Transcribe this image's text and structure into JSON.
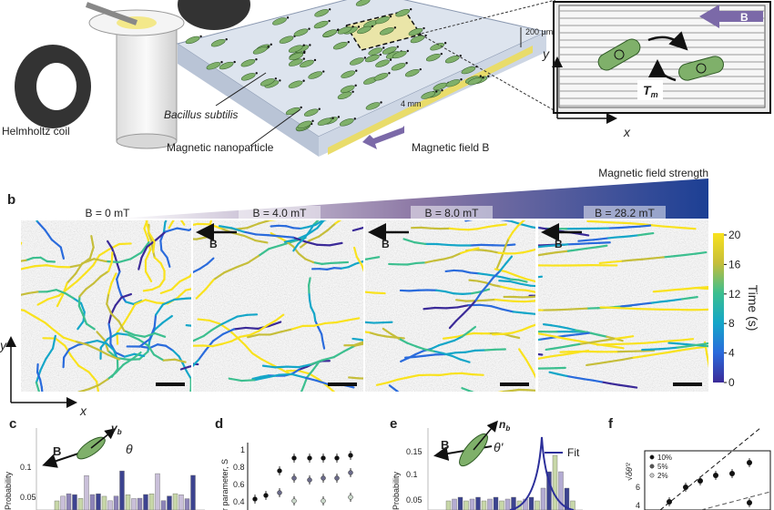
{
  "panel_a": {
    "coil_label": "Helmholtz coil",
    "bacteria_label": "Bacillus subtilis",
    "particle_label": "Magnetic nanoparticle",
    "width_label": "4 mm",
    "height_label": "200 µm",
    "field_label": "Magnetic field B",
    "inset": {
      "field": "B",
      "y_axis": "y",
      "x_axis": "x",
      "torque": "T",
      "torque_sub": "m"
    }
  },
  "panel_b": {
    "letter": "b",
    "gradient_label": "Magnetic field strength",
    "panels": [
      {
        "label": "B = 0 mT"
      },
      {
        "label": "B = 4.0 mT",
        "arrow": "B"
      },
      {
        "label": "B = 8.0 mT",
        "arrow": "B"
      },
      {
        "label": "B = 28.2 mT",
        "arrow": "B"
      }
    ],
    "colorbar": {
      "title": "Time (s)",
      "ticks": [
        "20",
        "16",
        "12",
        "8",
        "4",
        "0"
      ]
    },
    "y_axis": "y",
    "x_axis": "x"
  },
  "panel_c": {
    "letter": "c",
    "y_label": "Probability",
    "yticks": [
      "0.1",
      "0.05"
    ],
    "field": "B",
    "angle": "θ",
    "vector": "v",
    "vector_sub": "b"
  },
  "panel_d": {
    "letter": "d",
    "y_label": "Order parameter, S",
    "yticks": [
      "1",
      "0.8",
      "0.6",
      "0.4"
    ]
  },
  "panel_e": {
    "letter": "e",
    "y_label": "Probability",
    "yticks": [
      "0.15",
      "0.1",
      "0.05"
    ],
    "field": "B",
    "angle": "θ'",
    "vector": "n",
    "vector_sub": "b",
    "legend": "Fit"
  },
  "panel_f": {
    "letter": "f",
    "legend": [
      "10%",
      "5%",
      "2%"
    ],
    "yticks": [
      "6",
      "4"
    ]
  }
}
